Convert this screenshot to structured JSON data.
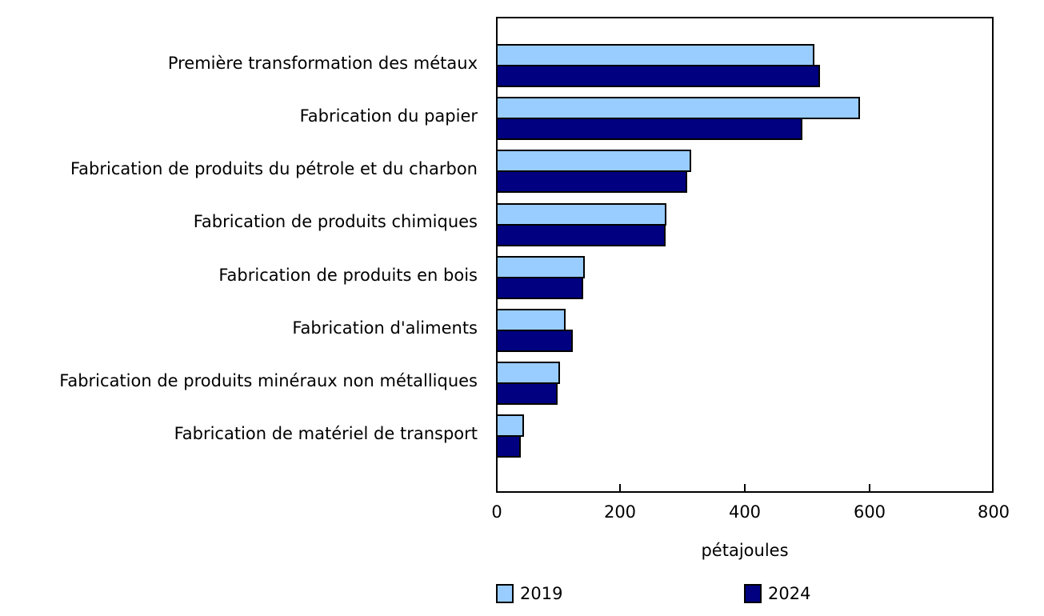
{
  "chart_data": {
    "type": "bar",
    "orientation": "horizontal",
    "title": "",
    "xlabel": "pétajoules",
    "ylabel": "",
    "xlim": [
      0,
      800
    ],
    "xticks": [
      "0",
      "200",
      "400",
      "600",
      "800"
    ],
    "grid": false,
    "legend_position": "bottom",
    "categories": [
      "Première transformation des métaux",
      "Fabrication du papier",
      "Fabrication de produits du pétrole et du charbon",
      "Fabrication de produits chimiques",
      "Fabrication de produits en bois",
      "Fabrication d'aliments",
      "Fabrication de produits minéraux non métalliques",
      "Fabrication de matériel de transport"
    ],
    "series": [
      {
        "name": "2019",
        "color": "#99ccff",
        "values": [
          509,
          582,
          311,
          271,
          140,
          109,
          100,
          43
        ]
      },
      {
        "name": "2024",
        "color": "#000080",
        "values": [
          518,
          490,
          305,
          270,
          138,
          121,
          97,
          37
        ]
      }
    ]
  },
  "axis": {
    "x_title": "pétajoules",
    "ticks": [
      "0",
      "200",
      "400",
      "600",
      "800"
    ]
  },
  "legend": {
    "items": [
      {
        "label": "2019",
        "color": "#99ccff"
      },
      {
        "label": "2024",
        "color": "#000080"
      }
    ]
  },
  "labels": [
    "Première transformation des métaux",
    "Fabrication du papier",
    "Fabrication de produits du pétrole et du charbon",
    "Fabrication de produits chimiques",
    "Fabrication de produits en bois",
    "Fabrication d'aliments",
    "Fabrication de produits minéraux non métalliques",
    "Fabrication de matériel de transport"
  ]
}
